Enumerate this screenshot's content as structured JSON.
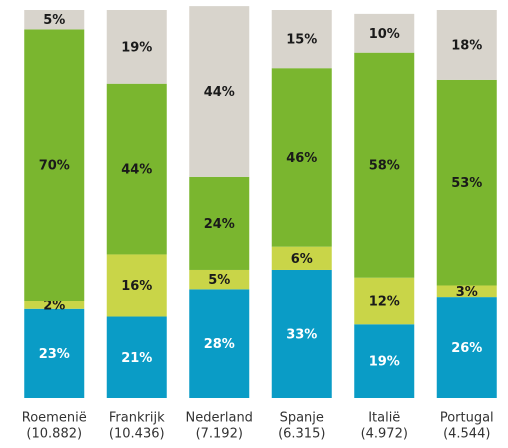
{
  "chart_data": {
    "type": "stacked_bar",
    "categories": [
      "Roemenië",
      "Frankrijk",
      "Nederland",
      "Spanje",
      "Italië",
      "Portugal"
    ],
    "category_counts": [
      "(10.882)",
      "(10.436)",
      "(7.192)",
      "(6.315)",
      "(4.972)",
      "(4.544)"
    ],
    "ylim": [
      0,
      100
    ],
    "series": [
      {
        "color": "#0a9cc6",
        "label_color": "#ffffff",
        "values": [
          23,
          21,
          28,
          33,
          19,
          26
        ],
        "value_labels": [
          "23%",
          "21%",
          "28%",
          "33%",
          "19%",
          "26%"
        ]
      },
      {
        "color": "#c9d548",
        "label_color": "#1a1a1a",
        "values": [
          2,
          16,
          5,
          6,
          12,
          3
        ],
        "value_labels": [
          "2%",
          "16%",
          "5%",
          "6%",
          "12%",
          "3%"
        ]
      },
      {
        "color": "#7ab62f",
        "label_color": "#1a1a1a",
        "values": [
          70,
          44,
          24,
          46,
          58,
          53
        ],
        "value_labels": [
          "70%",
          "44%",
          "24%",
          "46%",
          "58%",
          "53%"
        ]
      },
      {
        "color": "#d8d4cc",
        "label_color": "#1a1a1a",
        "values": [
          5,
          19,
          44,
          15,
          10,
          18
        ],
        "value_labels": [
          "5%",
          "19%",
          "44%",
          "15%",
          "10%",
          "18%"
        ]
      }
    ]
  }
}
